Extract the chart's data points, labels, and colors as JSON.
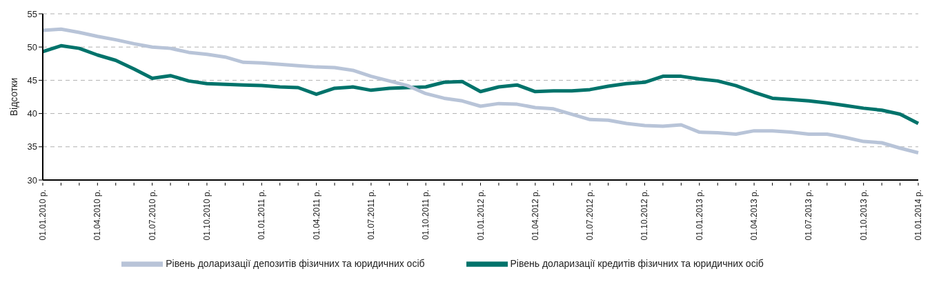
{
  "chart_data": {
    "type": "line",
    "ylabel": "Відсотки",
    "categories": [
      "01.01.2010 р.",
      null,
      null,
      "01.04.2010 р.",
      null,
      null,
      "01.07.2010 р.",
      null,
      null,
      "01.10.2010 р.",
      null,
      null,
      "01.01.2011 р.",
      null,
      null,
      "01.04.2011 р.",
      null,
      null,
      "01.07.2011 р.",
      null,
      null,
      "01.10.2011 р.",
      null,
      null,
      "01.01.2012 р.",
      null,
      null,
      "01.04.2012 р.",
      null,
      null,
      "01.07.2012 р.",
      null,
      null,
      "01.10.2012 р.",
      null,
      null,
      "01.01.2013 р.",
      null,
      null,
      "01.04.2013 р.",
      null,
      null,
      "01.07.2013 р.",
      null,
      null,
      "01.10.2013 р.",
      null,
      null,
      "01.01.2014 р."
    ],
    "series": [
      {
        "name": "Рівень доларизації кредитів фізичних та юридичних осіб",
        "color": "#00736b",
        "values": [
          49.3,
          50.2,
          49.8,
          48.8,
          48.0,
          46.7,
          45.3,
          45.7,
          44.9,
          44.5,
          44.4,
          44.3,
          44.2,
          44.0,
          43.9,
          42.9,
          43.8,
          44.0,
          43.5,
          43.8,
          43.9,
          44.0,
          44.7,
          44.8,
          43.3,
          44.0,
          44.3,
          43.3,
          43.4,
          43.4,
          43.6,
          44.1,
          44.5,
          44.7,
          45.6,
          45.6,
          45.2,
          44.9,
          44.2,
          43.2,
          42.3,
          42.1,
          41.9,
          41.6,
          41.2,
          40.8,
          40.5,
          39.9,
          38.5
        ]
      },
      {
        "name": "Рівень доларизації депозитів фізичних та юридичних осіб",
        "color": "#b8c4d8",
        "values": [
          52.5,
          52.7,
          52.2,
          51.6,
          51.1,
          50.5,
          50.0,
          49.8,
          49.2,
          48.9,
          48.5,
          47.7,
          47.6,
          47.4,
          47.2,
          47.0,
          46.9,
          46.5,
          45.6,
          44.9,
          44.2,
          43.0,
          42.3,
          41.9,
          41.1,
          41.5,
          41.4,
          40.9,
          40.7,
          39.9,
          39.1,
          39.0,
          38.5,
          38.2,
          38.1,
          38.3,
          37.2,
          37.1,
          36.9,
          37.4,
          37.4,
          37.2,
          36.9,
          36.9,
          36.4,
          35.8,
          35.6,
          34.8,
          34.1
        ]
      }
    ],
    "ylim": [
      30,
      55
    ],
    "yticks": [
      30,
      35,
      40,
      45,
      50,
      55
    ],
    "grid": "y",
    "legend": "bottom",
    "marker": "none",
    "line_style": "solid"
  }
}
